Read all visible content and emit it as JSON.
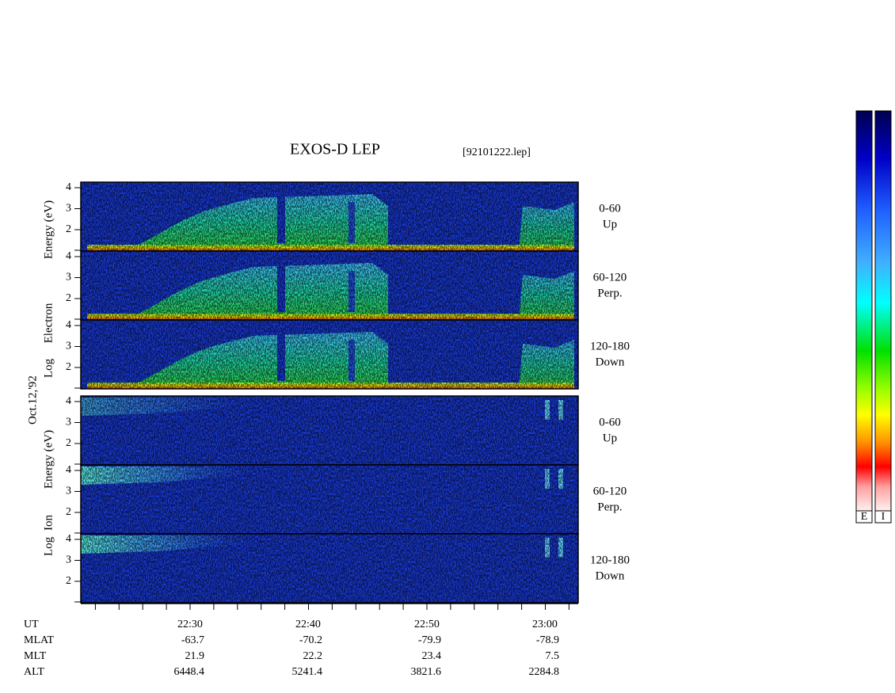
{
  "title": "EXOS-D LEP",
  "file": "[92101222.lep]",
  "date": "Oct.12,'92",
  "groups": [
    {
      "label": [
        "Log",
        "Electron",
        "Energy (eV)"
      ],
      "panels": [
        {
          "angle": "0-60",
          "direction": "Up",
          "yticks": [
            4,
            3,
            2
          ]
        },
        {
          "angle": "60-120",
          "direction": "Perp.",
          "yticks": [
            4,
            3,
            2
          ]
        },
        {
          "angle": "120-180",
          "direction": "Down",
          "yticks": [
            4,
            3,
            2
          ]
        }
      ]
    },
    {
      "label": [
        "Log",
        "Ion",
        "Energy (eV)"
      ],
      "panels": [
        {
          "angle": "0-60",
          "direction": "Up",
          "yticks": [
            4,
            3,
            2
          ]
        },
        {
          "angle": "60-120",
          "direction": "Perp.",
          "yticks": [
            4,
            3,
            2
          ]
        },
        {
          "angle": "120-180",
          "direction": "Down",
          "yticks": [
            4,
            3,
            2
          ]
        }
      ]
    }
  ],
  "x_tick_labels": [
    "22:30",
    "22:40",
    "22:50",
    "23:00"
  ],
  "ephemeris": [
    {
      "name": "UT",
      "values": []
    },
    {
      "name": "MLAT",
      "values": [
        "-63.7",
        "-70.2",
        "-79.9",
        "-78.9"
      ]
    },
    {
      "name": "MLT",
      "values": [
        "21.9",
        "22.2",
        "23.4",
        "7.5"
      ]
    },
    {
      "name": "ALT",
      "values": [
        "6448.4",
        "5241.4",
        "3821.6",
        "2284.8"
      ]
    }
  ],
  "colorbars": [
    "E",
    "I"
  ]
}
